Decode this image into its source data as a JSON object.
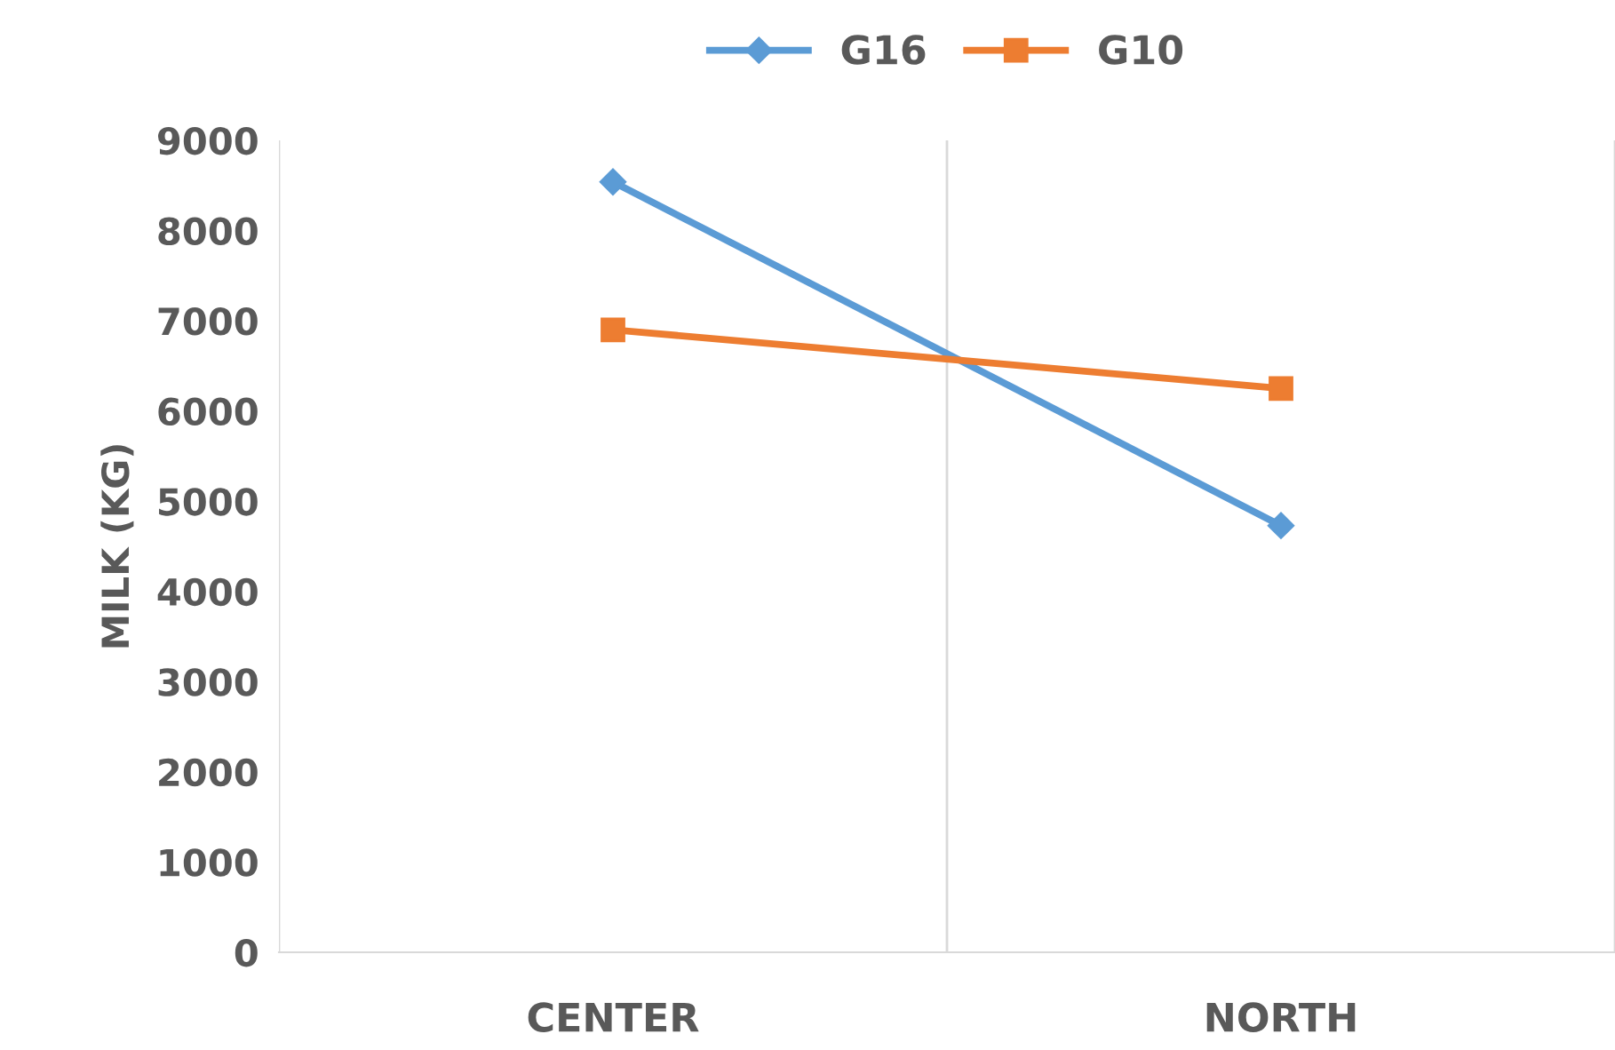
{
  "chart_data": {
    "type": "line",
    "ylabel": "MILK (KG)",
    "categories": [
      "CENTER",
      "NORTH"
    ],
    "series": [
      {
        "name": "G16",
        "color": "#5b9bd5",
        "marker": "diamond",
        "values": [
          8540,
          4730
        ]
      },
      {
        "name": "G10",
        "color": "#ed7d31",
        "marker": "square",
        "values": [
          6900,
          6250
        ]
      }
    ],
    "ylim": [
      0,
      9000
    ],
    "yticks": [
      0,
      1000,
      2000,
      3000,
      4000,
      5000,
      6000,
      7000,
      8000,
      9000
    ],
    "grid": "x",
    "legend": "top",
    "line_style": "solid"
  }
}
